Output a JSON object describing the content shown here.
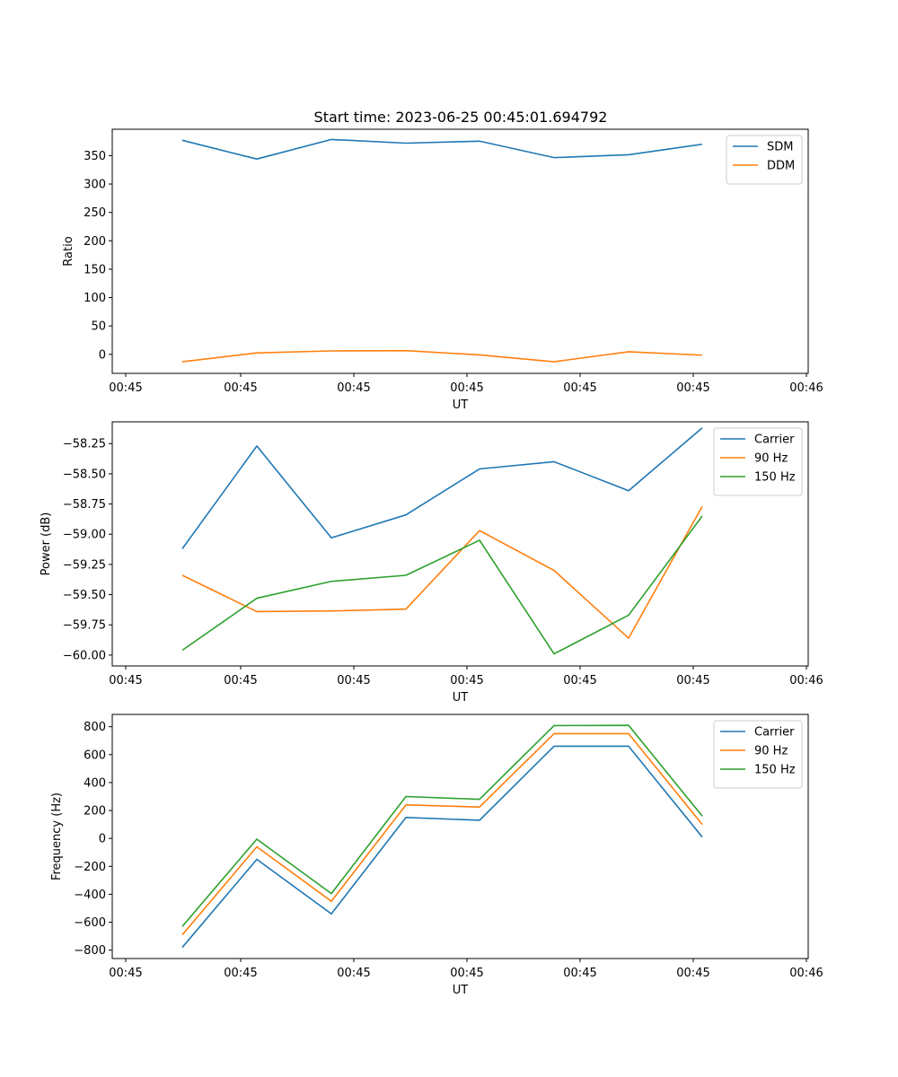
{
  "figure": {
    "title": "Start time: 2023-06-25 00:45:01.694792"
  },
  "colors": {
    "blue": "#1f77b4",
    "orange": "#ff7f0e",
    "green": "#2ca02c"
  },
  "chart_data": [
    {
      "type": "line",
      "title": "Start time: 2023-06-25 00:45:01.694792",
      "xlabel": "UT",
      "ylabel": "Ratio",
      "x_tick_labels": [
        "00:45",
        "00:45",
        "00:45",
        "00:45",
        "00:45",
        "00:45",
        "00:46"
      ],
      "y_ticks": [
        0,
        50,
        100,
        150,
        200,
        250,
        300,
        350
      ],
      "ylim": [
        -33.5,
        396.5
      ],
      "legend_position": "top-right",
      "x": [
        1,
        2,
        3,
        4,
        5,
        6,
        7,
        8
      ],
      "series": [
        {
          "name": "SDM",
          "color": "blue",
          "values": [
            377,
            344,
            378.5,
            372,
            375.5,
            346.5,
            351.5,
            370
          ]
        },
        {
          "name": "DDM",
          "color": "orange",
          "values": [
            -13,
            2.5,
            6,
            6.5,
            -1,
            -13,
            4.5,
            -1.5
          ]
        }
      ]
    },
    {
      "type": "line",
      "xlabel": "UT",
      "ylabel": "Power (dB)",
      "x_tick_labels": [
        "00:45",
        "00:45",
        "00:45",
        "00:45",
        "00:45",
        "00:45",
        "00:46"
      ],
      "y_ticks": [
        -60.0,
        -59.75,
        -59.5,
        -59.25,
        -59.0,
        -58.75,
        -58.5,
        -58.25
      ],
      "y_tick_labels": [
        "−60.00",
        "−59.75",
        "−59.50",
        "−59.25",
        "−59.00",
        "−58.75",
        "−58.50",
        "−58.25"
      ],
      "ylim": [
        -60.09,
        -58.07
      ],
      "legend_position": "top-right",
      "x": [
        1,
        2,
        3,
        4,
        5,
        6,
        7,
        8
      ],
      "series": [
        {
          "name": "Carrier",
          "color": "blue",
          "values": [
            -59.12,
            -58.27,
            -59.03,
            -58.84,
            -58.46,
            -58.4,
            -58.64,
            -58.12
          ]
        },
        {
          "name": "90 Hz",
          "color": "orange",
          "values": [
            -59.34,
            -59.64,
            -59.635,
            -59.62,
            -58.97,
            -59.3,
            -59.86,
            -58.77
          ]
        },
        {
          "name": "150 Hz",
          "color": "green",
          "values": [
            -59.96,
            -59.53,
            -59.39,
            -59.34,
            -59.05,
            -59.99,
            -59.67,
            -58.85
          ]
        }
      ]
    },
    {
      "type": "line",
      "xlabel": "UT",
      "ylabel": "Frequency (Hz)",
      "x_tick_labels": [
        "00:45",
        "00:45",
        "00:45",
        "00:45",
        "00:45",
        "00:45",
        "00:46"
      ],
      "y_ticks": [
        -800,
        -600,
        -400,
        -200,
        0,
        200,
        400,
        600,
        800
      ],
      "y_tick_labels": [
        "−800",
        "−600",
        "−400",
        "−200",
        "0",
        "200",
        "400",
        "600",
        "800"
      ],
      "ylim": [
        -860,
        888
      ],
      "legend_position": "top-right",
      "x": [
        1,
        2,
        3,
        4,
        5,
        6,
        7,
        8
      ],
      "series": [
        {
          "name": "Carrier",
          "color": "blue",
          "values": [
            -780,
            -150,
            -540,
            150,
            130,
            660,
            660,
            10
          ]
        },
        {
          "name": "90 Hz",
          "color": "orange",
          "values": [
            -690,
            -60,
            -450,
            240,
            225,
            750,
            750,
            100
          ]
        },
        {
          "name": "150 Hz",
          "color": "green",
          "values": [
            -630,
            -5,
            -395,
            300,
            280,
            808,
            810,
            160
          ]
        }
      ]
    }
  ]
}
